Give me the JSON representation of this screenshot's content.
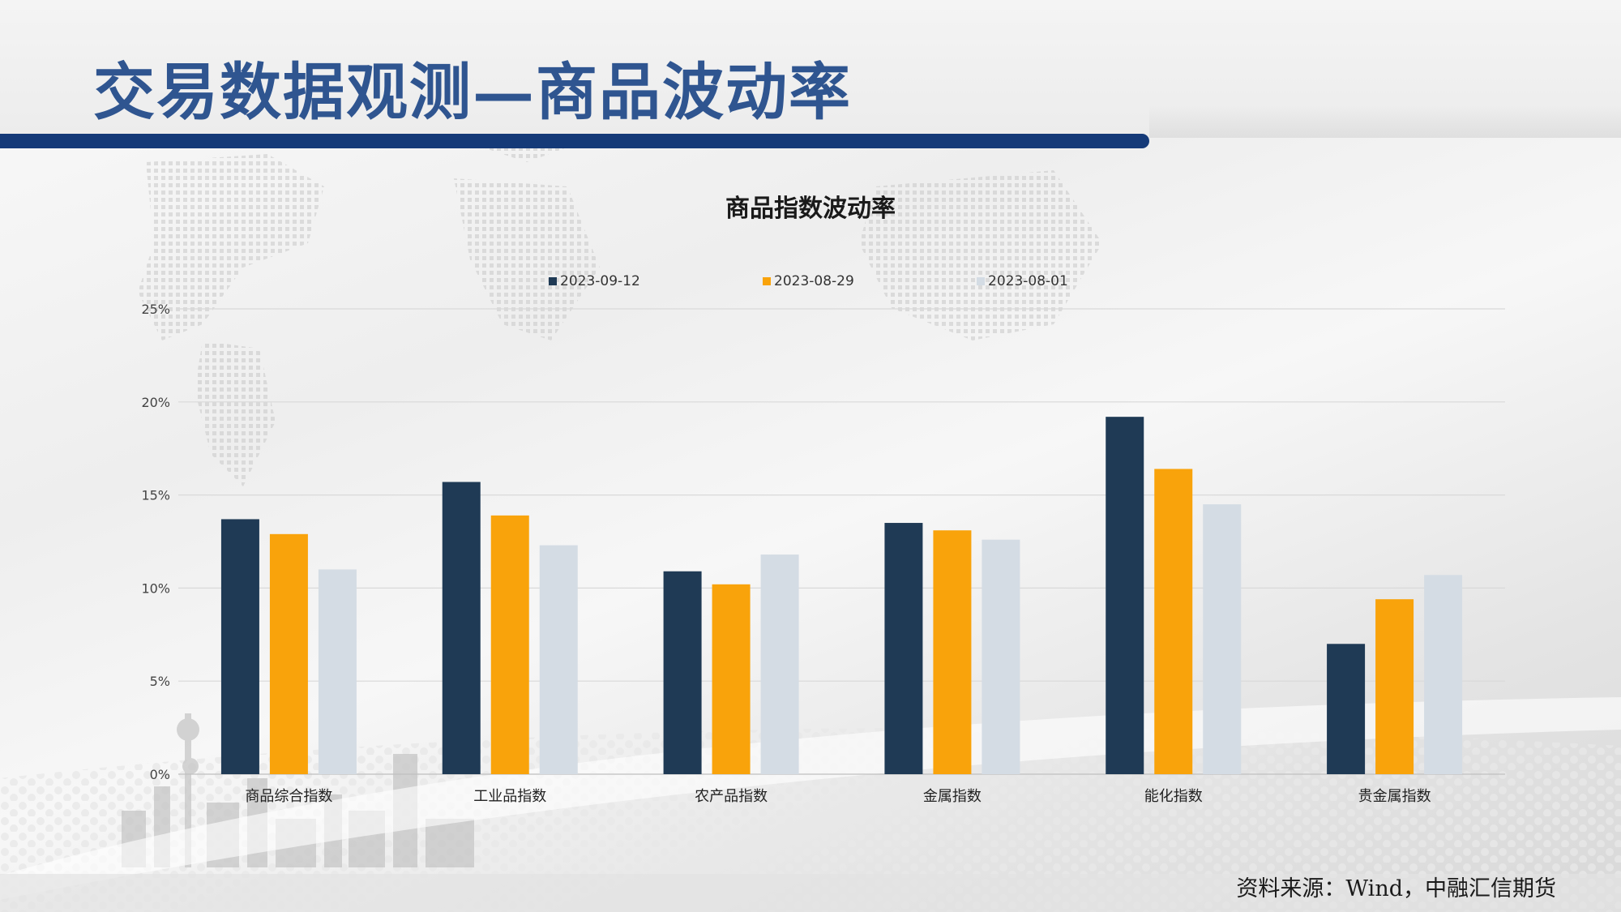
{
  "slide": {
    "title": "交易数据观测—商品波动率",
    "source": "资料来源：Wind，中融汇信期货"
  },
  "colors": {
    "title_text": "#2f5590",
    "title_bar": "#153a78",
    "series": [
      "#1f3a55",
      "#f9a30b",
      "#d4dce4"
    ],
    "gridline": "#d9d9d9"
  },
  "chart_data": {
    "type": "bar",
    "title": "商品指数波动率",
    "categories": [
      "商品综合指数",
      "工业品指数",
      "农产品指数",
      "金属指数",
      "能化指数",
      "贵金属指数"
    ],
    "series": [
      {
        "name": "2023-09-12",
        "values": [
          13.7,
          15.7,
          10.9,
          13.5,
          19.2,
          7.0
        ]
      },
      {
        "name": "2023-08-29",
        "values": [
          12.9,
          13.9,
          10.2,
          13.1,
          16.4,
          9.4
        ]
      },
      {
        "name": "2023-08-01",
        "values": [
          11.0,
          12.3,
          11.8,
          12.6,
          14.5,
          10.7
        ]
      }
    ],
    "ylim": [
      0,
      25
    ],
    "yticks": [
      "0%",
      "5%",
      "10%",
      "15%",
      "20%",
      "25%"
    ],
    "ytick_values": [
      0,
      5,
      10,
      15,
      20,
      25
    ],
    "grid": true,
    "legend_position": "top-center"
  }
}
